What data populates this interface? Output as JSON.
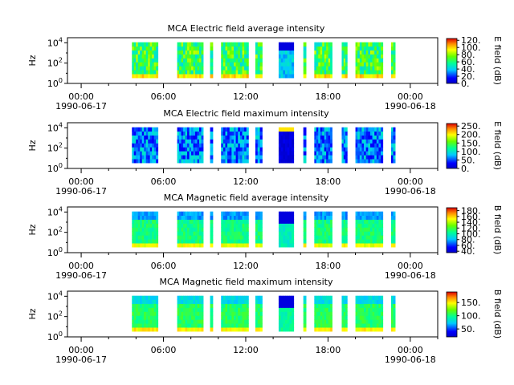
{
  "chart_data": [
    {
      "type": "heatmap",
      "title": "MCA  Electric field average intensity",
      "ylabel": "Hz",
      "colorbar_label": "E field (dB)",
      "colorbar_ticks": [
        "0.",
        "20.",
        "40.",
        "60.",
        "80.",
        "100.",
        "120."
      ],
      "colorbar_range": [
        0,
        125
      ],
      "ylim_log10": [
        0,
        4.5
      ],
      "y_ticks": [
        {
          "base": "10",
          "exp": "0"
        },
        {
          "base": "10",
          "exp": "2"
        },
        {
          "base": "10",
          "exp": "4"
        }
      ],
      "x_ticks": [
        {
          "time": "00:00",
          "date": "1990-06-17"
        },
        {
          "time": "06:00",
          "date": ""
        },
        {
          "time": "12:00",
          "date": ""
        },
        {
          "time": "18:00",
          "date": ""
        },
        {
          "time": "00:00",
          "date": "1990-06-18"
        }
      ],
      "xlim_hours": [
        -1,
        26
      ],
      "data_blocks_hours": [
        [
          3.7,
          5.6
        ],
        [
          7.0,
          8.9
        ],
        [
          9.4,
          9.6
        ],
        [
          10.2,
          12.2
        ],
        [
          12.7,
          13.2
        ],
        [
          14.4,
          15.5
        ],
        [
          16.2,
          16.4
        ],
        [
          17.0,
          18.3
        ],
        [
          19.0,
          19.4
        ],
        [
          20.0,
          22.0
        ],
        [
          22.6,
          22.9
        ]
      ],
      "profile": "e_avg"
    },
    {
      "type": "heatmap",
      "title": "MCA  Electric field maximum intensity",
      "ylabel": "Hz",
      "colorbar_label": "E field (dB)",
      "colorbar_ticks": [
        "0.",
        "50.",
        "100.",
        "150.",
        "200.",
        "250."
      ],
      "colorbar_range": [
        0,
        265
      ],
      "ylim_log10": [
        0,
        4.5
      ],
      "y_ticks": [
        {
          "base": "10",
          "exp": "0"
        },
        {
          "base": "10",
          "exp": "2"
        },
        {
          "base": "10",
          "exp": "4"
        }
      ],
      "x_ticks": [
        {
          "time": "00:00",
          "date": "1990-06-17"
        },
        {
          "time": "06:00",
          "date": ""
        },
        {
          "time": "12:00",
          "date": ""
        },
        {
          "time": "18:00",
          "date": ""
        },
        {
          "time": "00:00",
          "date": "1990-06-18"
        }
      ],
      "xlim_hours": [
        -1,
        26
      ],
      "data_blocks_hours": [
        [
          3.7,
          5.6
        ],
        [
          7.0,
          8.9
        ],
        [
          9.4,
          9.6
        ],
        [
          10.2,
          12.2
        ],
        [
          12.7,
          13.2
        ],
        [
          14.4,
          15.5
        ],
        [
          16.2,
          16.4
        ],
        [
          17.0,
          18.3
        ],
        [
          19.0,
          19.4
        ],
        [
          20.0,
          22.0
        ],
        [
          22.6,
          22.9
        ]
      ],
      "profile": "e_max"
    },
    {
      "type": "heatmap",
      "title": "MCA  Magnetic field average intensity",
      "ylabel": "Hz",
      "colorbar_label": "B field (dB)",
      "colorbar_ticks": [
        "40.",
        "60.",
        "80.",
        "100.",
        "120.",
        "140.",
        "160.",
        "180."
      ],
      "colorbar_range": [
        35,
        190
      ],
      "ylim_log10": [
        0,
        4.5
      ],
      "y_ticks": [
        {
          "base": "10",
          "exp": "0"
        },
        {
          "base": "10",
          "exp": "2"
        },
        {
          "base": "10",
          "exp": "4"
        }
      ],
      "x_ticks": [
        {
          "time": "00:00",
          "date": "1990-06-17"
        },
        {
          "time": "06:00",
          "date": ""
        },
        {
          "time": "12:00",
          "date": ""
        },
        {
          "time": "18:00",
          "date": ""
        },
        {
          "time": "00:00",
          "date": "1990-06-18"
        }
      ],
      "xlim_hours": [
        -1,
        26
      ],
      "data_blocks_hours": [
        [
          3.7,
          5.6
        ],
        [
          7.0,
          8.9
        ],
        [
          9.4,
          9.6
        ],
        [
          10.2,
          12.2
        ],
        [
          12.7,
          13.2
        ],
        [
          14.4,
          15.5
        ],
        [
          16.2,
          16.4
        ],
        [
          17.0,
          18.3
        ],
        [
          19.0,
          19.4
        ],
        [
          20.0,
          22.0
        ],
        [
          22.6,
          22.9
        ]
      ],
      "profile": "b_avg"
    },
    {
      "type": "heatmap",
      "title": "MCA  Magnetic field maximum intensity",
      "ylabel": "Hz",
      "colorbar_label": "B field (dB)",
      "colorbar_ticks": [
        "50.",
        "100.",
        "150."
      ],
      "colorbar_range": [
        20,
        190
      ],
      "ylim_log10": [
        0,
        4.5
      ],
      "y_ticks": [
        {
          "base": "10",
          "exp": "0"
        },
        {
          "base": "10",
          "exp": "2"
        },
        {
          "base": "10",
          "exp": "4"
        }
      ],
      "x_ticks": [
        {
          "time": "00:00",
          "date": "1990-06-17"
        },
        {
          "time": "06:00",
          "date": ""
        },
        {
          "time": "12:00",
          "date": ""
        },
        {
          "time": "18:00",
          "date": ""
        },
        {
          "time": "00:00",
          "date": "1990-06-18"
        }
      ],
      "xlim_hours": [
        -1,
        26
      ],
      "data_blocks_hours": [
        [
          3.7,
          5.6
        ],
        [
          7.0,
          8.9
        ],
        [
          9.4,
          9.6
        ],
        [
          10.2,
          12.2
        ],
        [
          12.7,
          13.2
        ],
        [
          14.4,
          15.5
        ],
        [
          16.2,
          16.4
        ],
        [
          17.0,
          18.3
        ],
        [
          19.0,
          19.4
        ],
        [
          20.0,
          22.0
        ],
        [
          22.6,
          22.9
        ]
      ],
      "profile": "b_max"
    }
  ]
}
